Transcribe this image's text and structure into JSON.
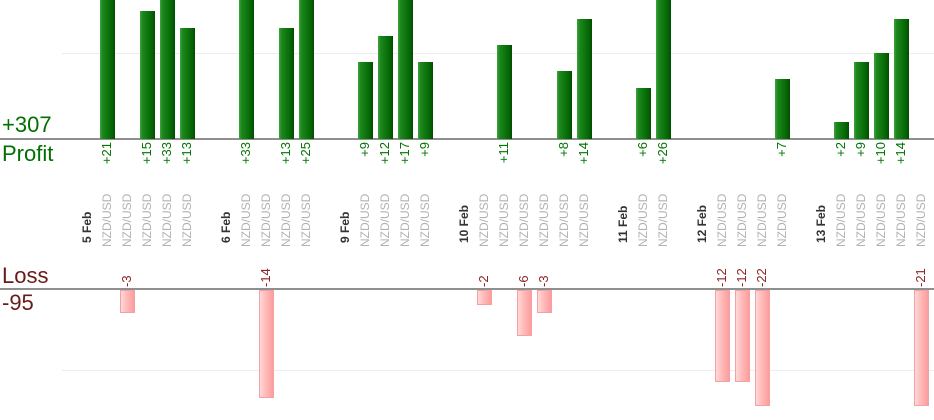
{
  "chart_data": {
    "type": "bar",
    "panels": {
      "profit": {
        "axis_label": "Profit",
        "total": "+307"
      },
      "loss": {
        "axis_label": "Loss",
        "total": "-95"
      }
    },
    "colors": {
      "profit_bar_green": "#0f7a0f",
      "loss_bar_pink": "#ffaaaa",
      "profit_text": "#007500",
      "loss_text": "#8b2525",
      "date_label": "#333333",
      "symbol_label": "#b2b2b2",
      "axis_line": "#8f8f8f",
      "gridline": "#ededed"
    },
    "layout_hints": {
      "gridline_step": 10,
      "bars_clipped_at_panel_edges": true,
      "legend": "none",
      "grid": "faint horizontal lines at +10 and -10"
    },
    "groups": [
      {
        "date": "5 Feb",
        "trades": [
          {
            "symbol": "NZD/USD",
            "value": 21,
            "label": "+21"
          },
          {
            "symbol": "NZD/USD",
            "value": -3,
            "label": "-3"
          },
          {
            "symbol": "NZD/USD",
            "value": 15,
            "label": "+15"
          },
          {
            "symbol": "NZD/USD",
            "value": 33,
            "label": "+33"
          },
          {
            "symbol": "NZD/USD",
            "value": 13,
            "label": "+13"
          }
        ]
      },
      {
        "date": "6 Feb",
        "trades": [
          {
            "symbol": "NZD/USD",
            "value": 33,
            "label": "+33"
          },
          {
            "symbol": "NZD/USD",
            "value": -14,
            "label": "-14"
          },
          {
            "symbol": "NZD/USD",
            "value": 13,
            "label": "+13"
          },
          {
            "symbol": "NZD/USD",
            "value": 25,
            "label": "+25"
          }
        ]
      },
      {
        "date": "9 Feb",
        "trades": [
          {
            "symbol": "NZD/USD",
            "value": 9,
            "label": "+9"
          },
          {
            "symbol": "NZD/USD",
            "value": 12,
            "label": "+12"
          },
          {
            "symbol": "NZD/USD",
            "value": 17,
            "label": "+17"
          },
          {
            "symbol": "NZD/USD",
            "value": 9,
            "label": "+9"
          }
        ]
      },
      {
        "date": "10 Feb",
        "trades": [
          {
            "symbol": "NZD/USD",
            "value": -2,
            "label": "-2"
          },
          {
            "symbol": "NZD/USD",
            "value": 11,
            "label": "+11"
          },
          {
            "symbol": "NZD/USD",
            "value": -6,
            "label": "-6"
          },
          {
            "symbol": "NZD/USD",
            "value": -3,
            "label": "-3"
          },
          {
            "symbol": "NZD/USD",
            "value": 8,
            "label": "+8"
          },
          {
            "symbol": "NZD/USD",
            "value": 14,
            "label": "+14"
          }
        ]
      },
      {
        "date": "11 Feb",
        "trades": [
          {
            "symbol": "NZD/USD",
            "value": 6,
            "label": "+6"
          },
          {
            "symbol": "NZD/USD",
            "value": 26,
            "label": "+26"
          }
        ]
      },
      {
        "date": "12 Feb",
        "trades": [
          {
            "symbol": "NZD/USD",
            "value": -12,
            "label": "-12"
          },
          {
            "symbol": "NZD/USD",
            "value": -12,
            "label": "-12"
          },
          {
            "symbol": "NZD/USD",
            "value": -22,
            "label": "-22"
          },
          {
            "symbol": "NZD/USD",
            "value": 7,
            "label": "+7"
          }
        ]
      },
      {
        "date": "13 Feb",
        "trades": [
          {
            "symbol": "NZD/USD",
            "value": 2,
            "label": "+2"
          },
          {
            "symbol": "NZD/USD",
            "value": 9,
            "label": "+9"
          },
          {
            "symbol": "NZD/USD",
            "value": 10,
            "label": "+10"
          },
          {
            "symbol": "NZD/USD",
            "value": 14,
            "label": "+14"
          },
          {
            "symbol": "NZD/USD",
            "value": -21,
            "label": "-21"
          }
        ]
      }
    ]
  }
}
